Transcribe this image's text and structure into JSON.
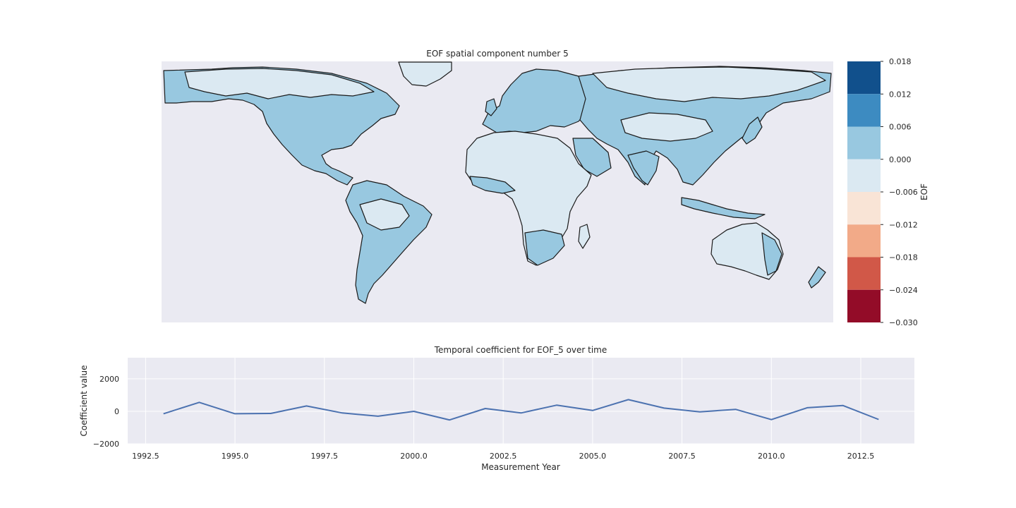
{
  "chart_data": [
    {
      "type": "heatmap",
      "title": "EOF spatial component number 5",
      "colorbar": {
        "label": "EOF",
        "ticks": [
          "0.018",
          "0.012",
          "0.006",
          "0.000",
          "−0.006",
          "−0.012",
          "−0.018",
          "−0.024",
          "−0.030"
        ],
        "range": [
          -0.03,
          0.018
        ],
        "levels": [
          {
            "from": 0.012,
            "to": 0.018,
            "color": "#11508c"
          },
          {
            "from": 0.006,
            "to": 0.012,
            "color": "#3d8bc1"
          },
          {
            "from": 0.0,
            "to": 0.006,
            "color": "#98c8e0"
          },
          {
            "from": -0.006,
            "to": 0.0,
            "color": "#dbe9f2"
          },
          {
            "from": -0.012,
            "to": -0.006,
            "color": "#f9e4d6"
          },
          {
            "from": -0.018,
            "to": -0.012,
            "color": "#f2aa88"
          },
          {
            "from": -0.024,
            "to": -0.018,
            "color": "#d15848"
          },
          {
            "from": -0.03,
            "to": -0.024,
            "color": "#930c28"
          }
        ]
      },
      "background_color": "#eaeaf2",
      "coastline_color": "#1a1a1a"
    },
    {
      "type": "line",
      "title": "Temporal coefficient for EOF_5 over time",
      "xlabel": "Measurement Year",
      "ylabel": "Coefficient value",
      "xlim": [
        1992.0,
        2014.0
      ],
      "ylim": [
        -2000,
        3300
      ],
      "xticks": [
        "1992.5",
        "1995.0",
        "1997.5",
        "2000.0",
        "2002.5",
        "2005.0",
        "2007.5",
        "2010.0",
        "2012.5"
      ],
      "xtick_values": [
        1992.5,
        1995.0,
        1997.5,
        2000.0,
        2002.5,
        2005.0,
        2007.5,
        2010.0,
        2012.5
      ],
      "yticks": [
        "−2000",
        "0",
        "2000"
      ],
      "ytick_values": [
        -2000,
        0,
        2000
      ],
      "grid": true,
      "series": [
        {
          "color": "#4c72b0",
          "x": [
            1993,
            1994,
            1995,
            1996,
            1997,
            1998,
            1999,
            2000,
            2001,
            2002,
            2003,
            2004,
            2005,
            2006,
            2007,
            2008,
            2009,
            2010,
            2011,
            2012,
            2013
          ],
          "y": [
            -150,
            550,
            -150,
            -130,
            330,
            -100,
            -300,
            0,
            -530,
            170,
            -100,
            380,
            50,
            720,
            200,
            -30,
            120,
            -510,
            220,
            360,
            -500
          ]
        }
      ]
    }
  ]
}
